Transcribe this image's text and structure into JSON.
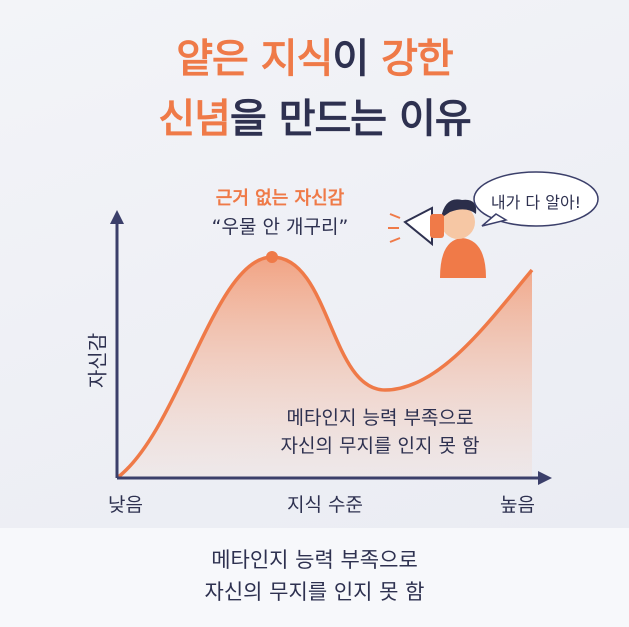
{
  "title": {
    "line1": [
      {
        "text": "얕은 지식",
        "accent": true
      },
      {
        "text": "이 ",
        "accent": false
      },
      {
        "text": "강한",
        "accent": true
      }
    ],
    "line2": [
      {
        "text": "신념",
        "accent": true
      },
      {
        "text": "을 ",
        "accent": false
      },
      {
        "text": "만드는 이유",
        "accent": false
      }
    ]
  },
  "peak_label": "근거 없는 자신감",
  "peak_quote": "“우물 안 개구리”",
  "speech_bubble": "내가 다 알아!",
  "y_axis_label": "자신감",
  "annotation": [
    "메타인지 능력 부족으로",
    "자신의 무지를 인지 못 함"
  ],
  "x_axis": {
    "low": "낮음",
    "label": "지식 수준",
    "high": "높음"
  },
  "caption": [
    "메타인지 능력 부족으로",
    "자신의 무지를 인지 못 함"
  ]
}
